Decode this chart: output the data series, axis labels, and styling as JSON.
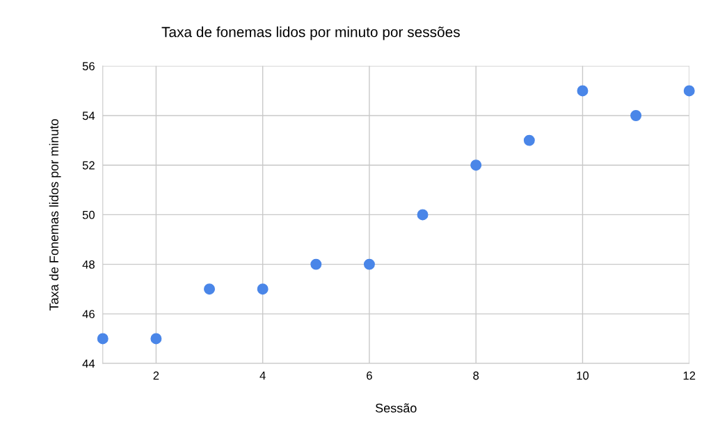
{
  "chart_data": {
    "type": "scatter",
    "title": "Taxa de fonemas lidos por minuto por sessões",
    "xlabel": "Sessão",
    "ylabel": "Taxa de Fonemas lidos por minuto",
    "x": [
      1,
      2,
      3,
      4,
      5,
      6,
      7,
      8,
      9,
      10,
      11,
      12
    ],
    "series": [
      {
        "color": "#4a86e8",
        "values": [
          45,
          45,
          47,
          47,
          48,
          48,
          50,
          52,
          53,
          55,
          54,
          55
        ]
      }
    ],
    "xlim": [
      1,
      12
    ],
    "xticks": [
      2,
      4,
      6,
      8,
      10,
      12
    ],
    "ylim": [
      44,
      56
    ],
    "yticks": [
      44,
      46,
      48,
      50,
      52,
      54,
      56
    ],
    "grid": true,
    "marker": "circle",
    "legend": false
  }
}
